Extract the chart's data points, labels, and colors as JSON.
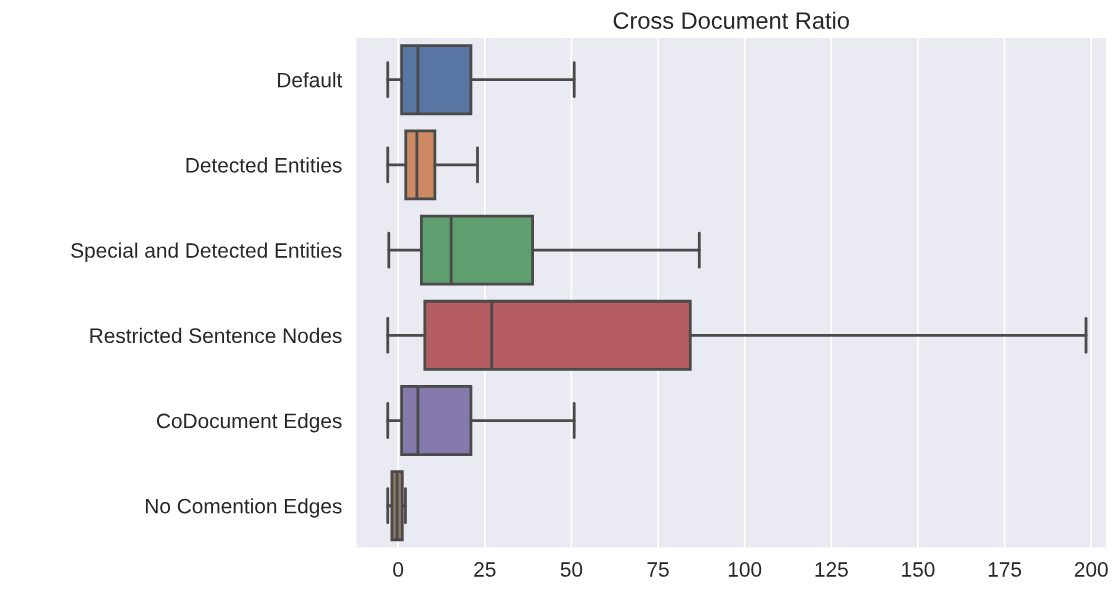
{
  "chart_data": {
    "type": "box",
    "orientation": "horizontal",
    "title": "Cross Document Ratio",
    "categories": [
      "Default",
      "Detected Entities",
      "Special and Detected Entities",
      "Restricted Sentence Nodes",
      "CoDocument Edges",
      "No Comention Edges"
    ],
    "boxes": [
      {
        "low": -3,
        "q1": 1,
        "median": 5.7,
        "q3": 21,
        "high": 50.8
      },
      {
        "low": -3,
        "q1": 2.2,
        "median": 5.4,
        "q3": 10.6,
        "high": 22.9
      },
      {
        "low": -2.7,
        "q1": 6.7,
        "median": 15.3,
        "q3": 38.8,
        "high": 86.9
      },
      {
        "low": -3,
        "q1": 7.7,
        "median": 27,
        "q3": 84.3,
        "high": 198.5
      },
      {
        "low": -3,
        "q1": 1,
        "median": 5.7,
        "q3": 21,
        "high": 50.8
      },
      {
        "low": -3,
        "q1": -1.8,
        "median": -0.3,
        "q3": 1.2,
        "high": 2.1
      }
    ],
    "colors": [
      "#5975a4",
      "#cc8963",
      "#5f9e6e",
      "#b55d60",
      "#857aab",
      "#8d7866"
    ],
    "xlim": [
      -12.3,
      204.5
    ],
    "xticks": [
      0,
      25,
      50,
      75,
      100,
      125,
      150,
      175,
      200
    ],
    "grid": "x",
    "legend": false
  }
}
